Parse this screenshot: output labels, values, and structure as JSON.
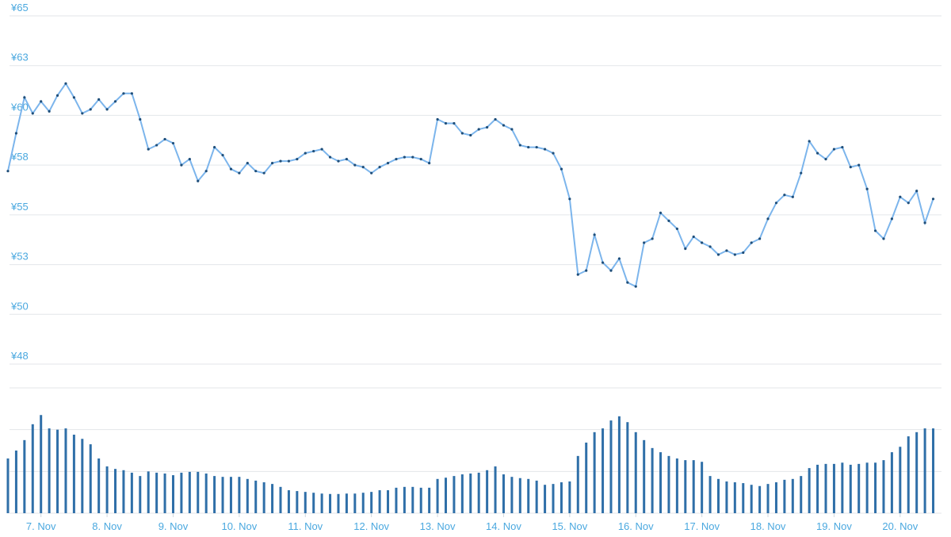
{
  "chart_data": [
    {
      "type": "line",
      "color": "#7cb5ec",
      "marker_color": "#1f4e79",
      "grid": true,
      "xlim": [
        0,
        337
      ],
      "ylim": [
        47.5,
        65
      ],
      "yticks": [
        {
          "value": 47.5,
          "label": "¥48"
        },
        {
          "value": 50,
          "label": "¥50"
        },
        {
          "value": 52.5,
          "label": "¥53"
        },
        {
          "value": 55,
          "label": "¥55"
        },
        {
          "value": 57.5,
          "label": "¥58"
        },
        {
          "value": 60,
          "label": "¥60"
        },
        {
          "value": 62.5,
          "label": "¥63"
        },
        {
          "value": 65,
          "label": "¥65"
        }
      ],
      "x": [
        0,
        3,
        6,
        9,
        12,
        15,
        18,
        21,
        24,
        27,
        30,
        33,
        36,
        39,
        42,
        45,
        48,
        51,
        54,
        57,
        60,
        63,
        66,
        69,
        72,
        75,
        78,
        81,
        84,
        87,
        90,
        93,
        96,
        99,
        102,
        105,
        108,
        111,
        114,
        117,
        120,
        123,
        126,
        129,
        132,
        135,
        138,
        141,
        144,
        147,
        150,
        153,
        156,
        159,
        162,
        165,
        168,
        171,
        174,
        177,
        180,
        183,
        186,
        189,
        192,
        195,
        198,
        201,
        204,
        207,
        210,
        213,
        216,
        219,
        222,
        225,
        228,
        231,
        234,
        237,
        240,
        243,
        246,
        249,
        252,
        255,
        258,
        261,
        264,
        267,
        270,
        273,
        276,
        279,
        282,
        285,
        288,
        291,
        294,
        297,
        300,
        303,
        306,
        309,
        312,
        315,
        318,
        321,
        324,
        327,
        330,
        333,
        336
      ],
      "values": [
        57.2,
        59.1,
        60.9,
        60.1,
        60.7,
        60.2,
        61.0,
        61.6,
        60.9,
        60.1,
        60.3,
        60.8,
        60.3,
        60.7,
        61.1,
        61.1,
        59.8,
        58.3,
        58.5,
        58.8,
        58.6,
        57.5,
        57.8,
        56.7,
        57.2,
        58.4,
        58.0,
        57.3,
        57.1,
        57.6,
        57.2,
        57.1,
        57.6,
        57.7,
        57.7,
        57.8,
        58.1,
        58.2,
        58.3,
        57.9,
        57.7,
        57.8,
        57.5,
        57.4,
        57.1,
        57.4,
        57.6,
        57.8,
        57.9,
        57.9,
        57.8,
        57.6,
        59.8,
        59.6,
        59.6,
        59.1,
        59.0,
        59.3,
        59.4,
        59.8,
        59.5,
        59.3,
        58.5,
        58.4,
        58.4,
        58.3,
        58.1,
        57.3,
        55.8,
        52.0,
        52.2,
        54.0,
        52.6,
        52.2,
        52.8,
        51.6,
        51.4,
        53.6,
        53.8,
        55.1,
        54.7,
        54.3,
        53.3,
        53.9,
        53.6,
        53.4,
        53.0,
        53.2,
        53.0,
        53.1,
        53.6,
        53.8,
        54.8,
        55.6,
        56.0,
        55.9,
        57.1,
        58.7,
        58.1,
        57.8,
        58.3,
        58.4,
        57.4,
        57.5,
        56.3,
        54.2,
        53.8,
        54.8,
        55.9,
        55.6,
        56.2,
        54.6,
        55.8
      ]
    },
    {
      "type": "bar",
      "color": "#2f6fa8",
      "grid": true,
      "xlim": [
        0,
        337
      ],
      "ylim": [
        0,
        3
      ],
      "yticks": [
        0,
        1,
        2,
        3
      ],
      "xticks": [
        {
          "value": 12,
          "label": "7. Nov"
        },
        {
          "value": 36,
          "label": "8. Nov"
        },
        {
          "value": 60,
          "label": "9. Nov"
        },
        {
          "value": 84,
          "label": "10. Nov"
        },
        {
          "value": 108,
          "label": "11. Nov"
        },
        {
          "value": 132,
          "label": "12. Nov"
        },
        {
          "value": 156,
          "label": "13. Nov"
        },
        {
          "value": 180,
          "label": "14. Nov"
        },
        {
          "value": 204,
          "label": "15. Nov"
        },
        {
          "value": 228,
          "label": "16. Nov"
        },
        {
          "value": 252,
          "label": "17. Nov"
        },
        {
          "value": 276,
          "label": "18. Nov"
        },
        {
          "value": 300,
          "label": "19. Nov"
        },
        {
          "value": 324,
          "label": "20. Nov"
        }
      ],
      "x": [
        0,
        3,
        6,
        9,
        12,
        15,
        18,
        21,
        24,
        27,
        30,
        33,
        36,
        39,
        42,
        45,
        48,
        51,
        54,
        57,
        60,
        63,
        66,
        69,
        72,
        75,
        78,
        81,
        84,
        87,
        90,
        93,
        96,
        99,
        102,
        105,
        108,
        111,
        114,
        117,
        120,
        123,
        126,
        129,
        132,
        135,
        138,
        141,
        144,
        147,
        150,
        153,
        156,
        159,
        162,
        165,
        168,
        171,
        174,
        177,
        180,
        183,
        186,
        189,
        192,
        195,
        198,
        201,
        204,
        207,
        210,
        213,
        216,
        219,
        222,
        225,
        228,
        231,
        234,
        237,
        240,
        243,
        246,
        249,
        252,
        255,
        258,
        261,
        264,
        267,
        270,
        273,
        276,
        279,
        282,
        285,
        288,
        291,
        294,
        297,
        300,
        303,
        306,
        309,
        312,
        315,
        318,
        321,
        324,
        327,
        330,
        333,
        336
      ],
      "values": [
        1.31,
        1.5,
        1.75,
        2.13,
        2.35,
        2.03,
        2.0,
        2.03,
        1.88,
        1.78,
        1.65,
        1.31,
        1.12,
        1.06,
        1.03,
        0.97,
        0.89,
        1.0,
        0.97,
        0.95,
        0.91,
        0.97,
        0.99,
        0.99,
        0.95,
        0.89,
        0.87,
        0.87,
        0.87,
        0.82,
        0.78,
        0.74,
        0.7,
        0.63,
        0.55,
        0.53,
        0.51,
        0.49,
        0.47,
        0.46,
        0.46,
        0.47,
        0.47,
        0.49,
        0.51,
        0.55,
        0.55,
        0.61,
        0.63,
        0.63,
        0.61,
        0.61,
        0.82,
        0.85,
        0.89,
        0.93,
        0.95,
        0.97,
        1.03,
        1.12,
        0.93,
        0.87,
        0.84,
        0.82,
        0.78,
        0.68,
        0.7,
        0.74,
        0.76,
        1.37,
        1.69,
        1.94,
        2.03,
        2.22,
        2.32,
        2.18,
        1.94,
        1.75,
        1.56,
        1.46,
        1.37,
        1.31,
        1.27,
        1.27,
        1.23,
        0.89,
        0.82,
        0.76,
        0.74,
        0.72,
        0.68,
        0.65,
        0.7,
        0.74,
        0.8,
        0.82,
        0.89,
        1.08,
        1.16,
        1.18,
        1.18,
        1.21,
        1.16,
        1.18,
        1.21,
        1.21,
        1.27,
        1.46,
        1.59,
        1.84,
        1.94,
        2.03,
        2.03
      ]
    }
  ]
}
